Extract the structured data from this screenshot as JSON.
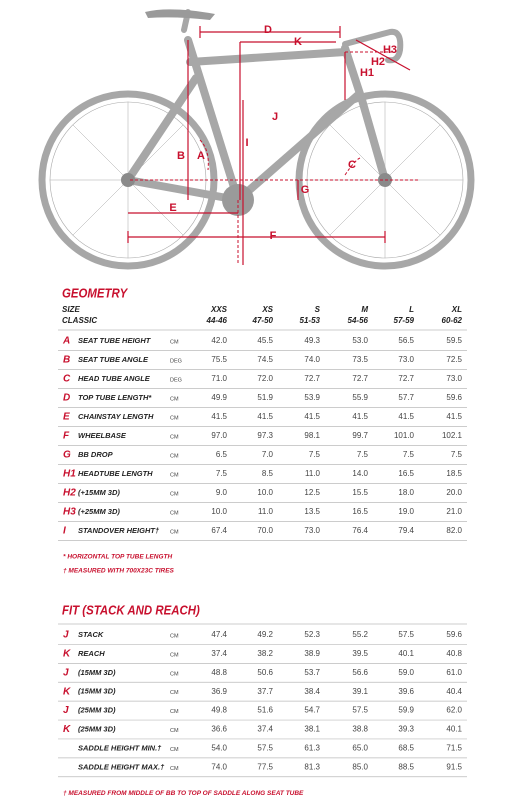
{
  "diagram": {
    "labels": {
      "A": "A",
      "B": "B",
      "C": "C",
      "D": "D",
      "E": "E",
      "F": "F",
      "G": "G",
      "H1": "H1",
      "H2": "H2",
      "H3": "H3",
      "I": "I",
      "J": "J",
      "K": "K"
    }
  },
  "geometry": {
    "title": "GEOMETRY",
    "size_label": "SIZE",
    "classic_label": "CLASSIC",
    "sizes": [
      {
        "name": "XXS",
        "range": "44-46"
      },
      {
        "name": "XS",
        "range": "47-50"
      },
      {
        "name": "S",
        "range": "51-53"
      },
      {
        "name": "M",
        "range": "54-56"
      },
      {
        "name": "L",
        "range": "57-59"
      },
      {
        "name": "XL",
        "range": "60-62"
      }
    ],
    "rows": [
      {
        "key": "A",
        "name": "SEAT TUBE HEIGHT",
        "unit": "CM",
        "values": [
          "42.0",
          "45.5",
          "49.3",
          "53.0",
          "56.5",
          "59.5"
        ]
      },
      {
        "key": "B",
        "name": "SEAT TUBE ANGLE",
        "unit": "DEG",
        "values": [
          "75.5",
          "74.5",
          "74.0",
          "73.5",
          "73.0",
          "72.5"
        ]
      },
      {
        "key": "C",
        "name": "HEAD TUBE ANGLE",
        "unit": "DEG",
        "values": [
          "71.0",
          "72.0",
          "72.7",
          "72.7",
          "72.7",
          "73.0"
        ]
      },
      {
        "key": "D",
        "name": "TOP TUBE LENGTH*",
        "unit": "CM",
        "values": [
          "49.9",
          "51.9",
          "53.9",
          "55.9",
          "57.7",
          "59.6"
        ]
      },
      {
        "key": "E",
        "name": "CHAINSTAY LENGTH",
        "unit": "CM",
        "values": [
          "41.5",
          "41.5",
          "41.5",
          "41.5",
          "41.5",
          "41.5"
        ]
      },
      {
        "key": "F",
        "name": "WHEELBASE",
        "unit": "CM",
        "values": [
          "97.0",
          "97.3",
          "98.1",
          "99.7",
          "101.0",
          "102.1"
        ]
      },
      {
        "key": "G",
        "name": "BB DROP",
        "unit": "CM",
        "values": [
          "6.5",
          "7.0",
          "7.5",
          "7.5",
          "7.5",
          "7.5"
        ]
      },
      {
        "key": "H1",
        "name": "HEADTUBE LENGTH",
        "unit": "CM",
        "values": [
          "7.5",
          "8.5",
          "11.0",
          "14.0",
          "16.5",
          "18.5"
        ]
      },
      {
        "key": "H2",
        "name": "(+15MM 3D)",
        "unit": "CM",
        "values": [
          "9.0",
          "10.0",
          "12.5",
          "15.5",
          "18.0",
          "20.0"
        ]
      },
      {
        "key": "H3",
        "name": "(+25MM 3D)",
        "unit": "CM",
        "values": [
          "10.0",
          "11.0",
          "13.5",
          "16.5",
          "19.0",
          "21.0"
        ]
      },
      {
        "key": "I",
        "name": "STANDOVER HEIGHT†",
        "unit": "CM",
        "values": [
          "67.4",
          "70.0",
          "73.0",
          "76.4",
          "79.4",
          "82.0"
        ]
      }
    ],
    "footnotes": [
      "* HORIZONTAL TOP TUBE LENGTH",
      "† MEASURED WITH 700X23C TIRES"
    ]
  },
  "fit": {
    "title": "FIT (STACK AND REACH)",
    "rows": [
      {
        "key": "J",
        "name": "STACK",
        "unit": "CM",
        "values": [
          "47.4",
          "49.2",
          "52.3",
          "55.2",
          "57.5",
          "59.6"
        ]
      },
      {
        "key": "K",
        "name": "REACH",
        "unit": "CM",
        "values": [
          "37.4",
          "38.2",
          "38.9",
          "39.5",
          "40.1",
          "40.8"
        ]
      },
      {
        "key": "J",
        "name": "(15MM 3D)",
        "unit": "CM",
        "values": [
          "48.8",
          "50.6",
          "53.7",
          "56.6",
          "59.0",
          "61.0"
        ]
      },
      {
        "key": "K",
        "name": "(15MM 3D)",
        "unit": "CM",
        "values": [
          "36.9",
          "37.7",
          "38.4",
          "39.1",
          "39.6",
          "40.4"
        ]
      },
      {
        "key": "J",
        "name": "(25MM 3D)",
        "unit": "CM",
        "values": [
          "49.8",
          "51.6",
          "54.7",
          "57.5",
          "59.9",
          "62.0"
        ]
      },
      {
        "key": "K",
        "name": "(25MM 3D)",
        "unit": "CM",
        "values": [
          "36.6",
          "37.4",
          "38.1",
          "38.8",
          "39.3",
          "40.1"
        ]
      },
      {
        "name": "SADDLE HEIGHT MIN.†",
        "unit": "CM",
        "values": [
          "54.0",
          "57.5",
          "61.3",
          "65.0",
          "68.5",
          "71.5"
        ]
      },
      {
        "name": "SADDLE HEIGHT MAX.†",
        "unit": "CM",
        "values": [
          "74.0",
          "77.5",
          "81.3",
          "85.0",
          "88.5",
          "91.5"
        ]
      }
    ],
    "footnotes": [
      "† MEASURED FROM MIDDLE OF BB TO TOP OF SADDLE ALONG SEAT TUBE"
    ]
  }
}
